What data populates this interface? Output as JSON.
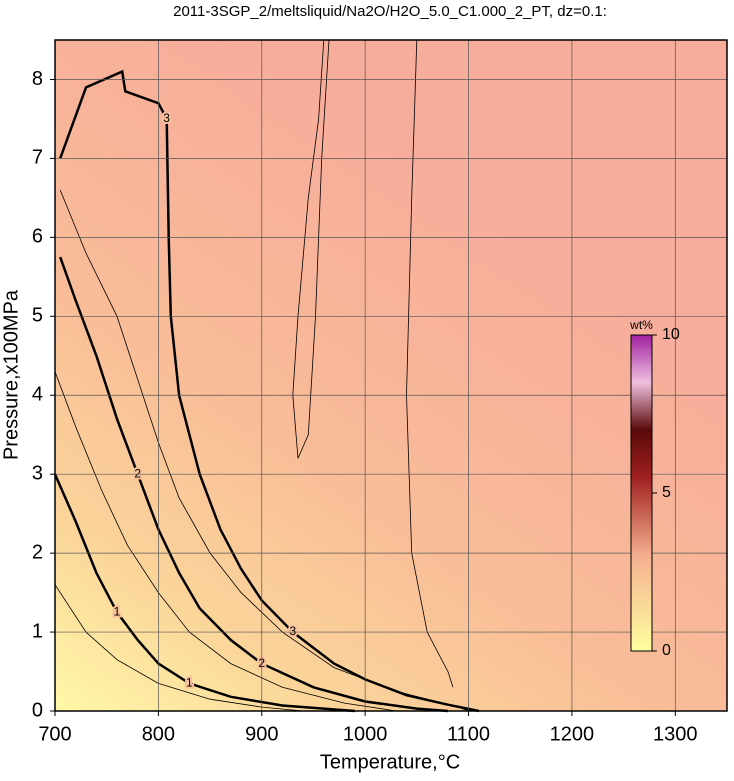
{
  "chart_data": {
    "type": "contour",
    "title": "2011-3SGP_2/meltsliquid/Na2O/H2O_5.0_C1.000_2_PT, dz=0.1:",
    "x_label": "Temperature,°C",
    "y_label": "Pressure,x100MPa",
    "xlim": [
      700,
      1350
    ],
    "ylim": [
      0,
      8.5
    ],
    "xticks": [
      700,
      800,
      900,
      1000,
      1100,
      1200,
      1300
    ],
    "yticks": [
      0,
      1,
      2,
      3,
      4,
      5,
      6,
      7,
      8
    ],
    "grid": true,
    "colorbar": {
      "label": "wt%",
      "lim": [
        0,
        10
      ],
      "ticks": [
        0,
        5,
        10
      ]
    },
    "contours": [
      {
        "level": 1,
        "bold": true,
        "x": [
          700,
          720,
          740,
          760,
          780,
          800,
          830,
          870,
          920,
          990
        ],
        "y": [
          3.0,
          2.4,
          1.75,
          1.25,
          0.9,
          0.6,
          0.35,
          0.18,
          0.07,
          0
        ]
      },
      {
        "level": 2,
        "bold": true,
        "x": [
          705,
          720,
          740,
          760,
          780,
          800,
          820,
          840,
          870,
          900,
          950,
          1000,
          1050,
          1080
        ],
        "y": [
          5.75,
          5.2,
          4.5,
          3.7,
          3.0,
          2.3,
          1.75,
          1.3,
          0.9,
          0.6,
          0.3,
          0.12,
          0.03,
          0
        ]
      },
      {
        "level": 3,
        "bold": true,
        "x": [
          705,
          730,
          765,
          768,
          800,
          808,
          810,
          812,
          820,
          840,
          860,
          880,
          900,
          930,
          970,
          1000,
          1040,
          1080,
          1110
        ],
        "y": [
          7.0,
          7.9,
          8.1,
          7.85,
          7.7,
          7.5,
          6.0,
          5.0,
          4.0,
          3.0,
          2.3,
          1.8,
          1.4,
          1.0,
          0.6,
          0.4,
          0.2,
          0.08,
          0
        ]
      },
      {
        "level": 0.5,
        "bold": false,
        "x": [
          700,
          730,
          760,
          800,
          850,
          900,
          940
        ],
        "y": [
          1.6,
          1.0,
          0.65,
          0.35,
          0.15,
          0.05,
          0
        ]
      },
      {
        "level": 1.5,
        "bold": false,
        "x": [
          700,
          720,
          745,
          770,
          800,
          830,
          870,
          920,
          980,
          1030
        ],
        "y": [
          4.3,
          3.6,
          2.8,
          2.1,
          1.5,
          1.0,
          0.6,
          0.3,
          0.1,
          0
        ]
      },
      {
        "level": 2.5,
        "bold": false,
        "x": [
          705,
          730,
          760,
          780,
          800,
          820,
          850,
          880,
          920,
          970,
          1030,
          1090,
          1100
        ],
        "y": [
          6.6,
          5.8,
          5.0,
          4.2,
          3.4,
          2.7,
          2.0,
          1.5,
          1.0,
          0.55,
          0.25,
          0.05,
          0
        ]
      },
      {
        "level": 3.5,
        "bold": false,
        "x": [
          960,
          955,
          945,
          935,
          930,
          935,
          945,
          952,
          958,
          965
        ],
        "y": [
          8.5,
          7.5,
          6.5,
          5.0,
          4.0,
          3.2,
          3.5,
          5.0,
          7.0,
          8.5
        ]
      },
      {
        "level": 3.2,
        "bold": false,
        "x": [
          1050,
          1045,
          1040,
          1045,
          1060,
          1080,
          1085
        ],
        "y": [
          8.5,
          6.5,
          4.0,
          2.0,
          1.0,
          0.5,
          0.3
        ]
      }
    ]
  }
}
